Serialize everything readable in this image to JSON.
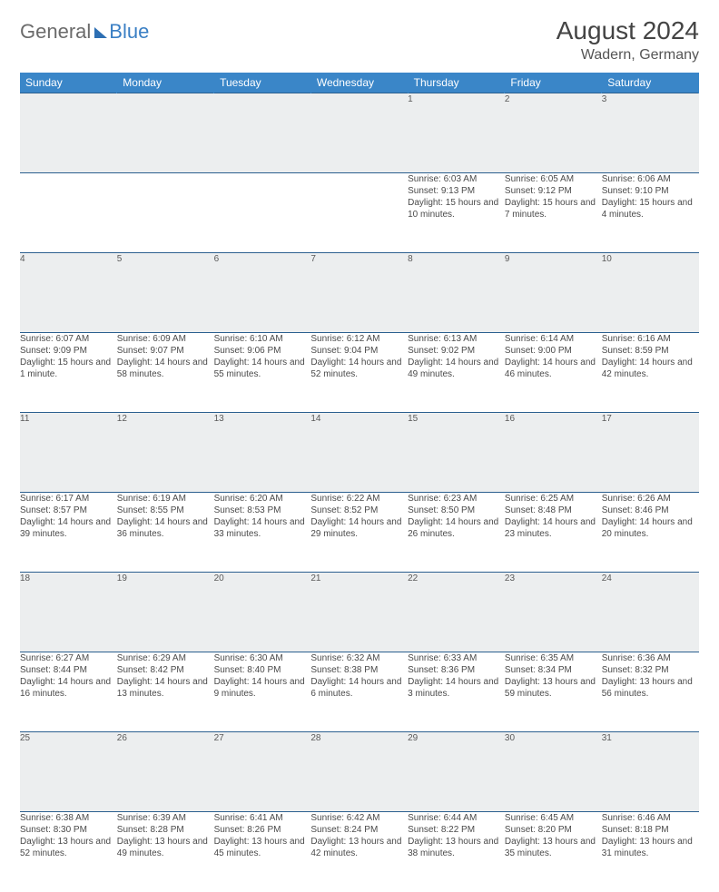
{
  "brand": {
    "part1": "General",
    "part2": "Blue"
  },
  "title": "August 2024",
  "location": "Wadern, Germany",
  "colors": {
    "header_bg": "#3a86c8",
    "header_fg": "#ffffff",
    "daynum_bg": "#eceeef",
    "border": "#2b5f8f",
    "text": "#4a4a4a"
  },
  "day_headers": [
    "Sunday",
    "Monday",
    "Tuesday",
    "Wednesday",
    "Thursday",
    "Friday",
    "Saturday"
  ],
  "weeks": [
    [
      null,
      null,
      null,
      null,
      {
        "n": "1",
        "sr": "Sunrise: 6:03 AM",
        "ss": "Sunset: 9:13 PM",
        "dl": "Daylight: 15 hours and 10 minutes."
      },
      {
        "n": "2",
        "sr": "Sunrise: 6:05 AM",
        "ss": "Sunset: 9:12 PM",
        "dl": "Daylight: 15 hours and 7 minutes."
      },
      {
        "n": "3",
        "sr": "Sunrise: 6:06 AM",
        "ss": "Sunset: 9:10 PM",
        "dl": "Daylight: 15 hours and 4 minutes."
      }
    ],
    [
      {
        "n": "4",
        "sr": "Sunrise: 6:07 AM",
        "ss": "Sunset: 9:09 PM",
        "dl": "Daylight: 15 hours and 1 minute."
      },
      {
        "n": "5",
        "sr": "Sunrise: 6:09 AM",
        "ss": "Sunset: 9:07 PM",
        "dl": "Daylight: 14 hours and 58 minutes."
      },
      {
        "n": "6",
        "sr": "Sunrise: 6:10 AM",
        "ss": "Sunset: 9:06 PM",
        "dl": "Daylight: 14 hours and 55 minutes."
      },
      {
        "n": "7",
        "sr": "Sunrise: 6:12 AM",
        "ss": "Sunset: 9:04 PM",
        "dl": "Daylight: 14 hours and 52 minutes."
      },
      {
        "n": "8",
        "sr": "Sunrise: 6:13 AM",
        "ss": "Sunset: 9:02 PM",
        "dl": "Daylight: 14 hours and 49 minutes."
      },
      {
        "n": "9",
        "sr": "Sunrise: 6:14 AM",
        "ss": "Sunset: 9:00 PM",
        "dl": "Daylight: 14 hours and 46 minutes."
      },
      {
        "n": "10",
        "sr": "Sunrise: 6:16 AM",
        "ss": "Sunset: 8:59 PM",
        "dl": "Daylight: 14 hours and 42 minutes."
      }
    ],
    [
      {
        "n": "11",
        "sr": "Sunrise: 6:17 AM",
        "ss": "Sunset: 8:57 PM",
        "dl": "Daylight: 14 hours and 39 minutes."
      },
      {
        "n": "12",
        "sr": "Sunrise: 6:19 AM",
        "ss": "Sunset: 8:55 PM",
        "dl": "Daylight: 14 hours and 36 minutes."
      },
      {
        "n": "13",
        "sr": "Sunrise: 6:20 AM",
        "ss": "Sunset: 8:53 PM",
        "dl": "Daylight: 14 hours and 33 minutes."
      },
      {
        "n": "14",
        "sr": "Sunrise: 6:22 AM",
        "ss": "Sunset: 8:52 PM",
        "dl": "Daylight: 14 hours and 29 minutes."
      },
      {
        "n": "15",
        "sr": "Sunrise: 6:23 AM",
        "ss": "Sunset: 8:50 PM",
        "dl": "Daylight: 14 hours and 26 minutes."
      },
      {
        "n": "16",
        "sr": "Sunrise: 6:25 AM",
        "ss": "Sunset: 8:48 PM",
        "dl": "Daylight: 14 hours and 23 minutes."
      },
      {
        "n": "17",
        "sr": "Sunrise: 6:26 AM",
        "ss": "Sunset: 8:46 PM",
        "dl": "Daylight: 14 hours and 20 minutes."
      }
    ],
    [
      {
        "n": "18",
        "sr": "Sunrise: 6:27 AM",
        "ss": "Sunset: 8:44 PM",
        "dl": "Daylight: 14 hours and 16 minutes."
      },
      {
        "n": "19",
        "sr": "Sunrise: 6:29 AM",
        "ss": "Sunset: 8:42 PM",
        "dl": "Daylight: 14 hours and 13 minutes."
      },
      {
        "n": "20",
        "sr": "Sunrise: 6:30 AM",
        "ss": "Sunset: 8:40 PM",
        "dl": "Daylight: 14 hours and 9 minutes."
      },
      {
        "n": "21",
        "sr": "Sunrise: 6:32 AM",
        "ss": "Sunset: 8:38 PM",
        "dl": "Daylight: 14 hours and 6 minutes."
      },
      {
        "n": "22",
        "sr": "Sunrise: 6:33 AM",
        "ss": "Sunset: 8:36 PM",
        "dl": "Daylight: 14 hours and 3 minutes."
      },
      {
        "n": "23",
        "sr": "Sunrise: 6:35 AM",
        "ss": "Sunset: 8:34 PM",
        "dl": "Daylight: 13 hours and 59 minutes."
      },
      {
        "n": "24",
        "sr": "Sunrise: 6:36 AM",
        "ss": "Sunset: 8:32 PM",
        "dl": "Daylight: 13 hours and 56 minutes."
      }
    ],
    [
      {
        "n": "25",
        "sr": "Sunrise: 6:38 AM",
        "ss": "Sunset: 8:30 PM",
        "dl": "Daylight: 13 hours and 52 minutes."
      },
      {
        "n": "26",
        "sr": "Sunrise: 6:39 AM",
        "ss": "Sunset: 8:28 PM",
        "dl": "Daylight: 13 hours and 49 minutes."
      },
      {
        "n": "27",
        "sr": "Sunrise: 6:41 AM",
        "ss": "Sunset: 8:26 PM",
        "dl": "Daylight: 13 hours and 45 minutes."
      },
      {
        "n": "28",
        "sr": "Sunrise: 6:42 AM",
        "ss": "Sunset: 8:24 PM",
        "dl": "Daylight: 13 hours and 42 minutes."
      },
      {
        "n": "29",
        "sr": "Sunrise: 6:44 AM",
        "ss": "Sunset: 8:22 PM",
        "dl": "Daylight: 13 hours and 38 minutes."
      },
      {
        "n": "30",
        "sr": "Sunrise: 6:45 AM",
        "ss": "Sunset: 8:20 PM",
        "dl": "Daylight: 13 hours and 35 minutes."
      },
      {
        "n": "31",
        "sr": "Sunrise: 6:46 AM",
        "ss": "Sunset: 8:18 PM",
        "dl": "Daylight: 13 hours and 31 minutes."
      }
    ]
  ]
}
